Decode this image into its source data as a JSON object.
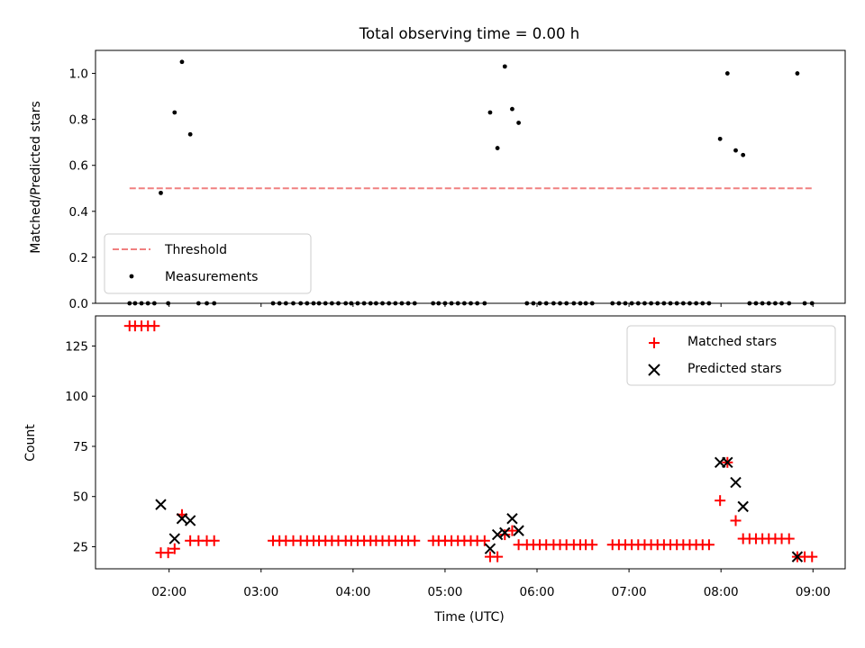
{
  "chart_data": [
    {
      "type": "scatter",
      "title": "Total observing time = 0.00 h",
      "xlabel": "",
      "ylabel": "Matched/Predicted stars",
      "ylim": [
        0,
        1.1
      ],
      "xlim_hours": [
        1.2,
        9.35
      ],
      "yticks": [
        0.0,
        0.2,
        0.4,
        0.6,
        0.8,
        1.0
      ],
      "ytick_labels": [
        "0.0",
        "0.2",
        "0.4",
        "0.6",
        "0.8",
        "1.0"
      ],
      "legend_position": "lower-left",
      "legend": [
        {
          "label": "Threshold",
          "style": "dashed-line",
          "color": "#f08080"
        },
        {
          "label": "Measurements",
          "style": "dot",
          "color": "#000000"
        }
      ],
      "threshold": {
        "name": "Threshold",
        "y": 0.5,
        "x_start_hours": 1.57,
        "x_end_hours": 9.0,
        "color": "#f08080"
      },
      "series": [
        {
          "name": "Measurements",
          "color": "#000000",
          "x_hours": [
            1.57,
            1.63,
            1.7,
            1.77,
            1.84,
            1.91,
            1.99,
            2.06,
            2.14,
            2.23,
            2.32,
            2.41,
            2.49,
            3.13,
            3.2,
            3.27,
            3.35,
            3.43,
            3.5,
            3.57,
            3.63,
            3.7,
            3.77,
            3.84,
            3.92,
            3.98,
            4.05,
            4.12,
            4.19,
            4.25,
            4.32,
            4.39,
            4.46,
            4.53,
            4.6,
            4.67,
            4.87,
            4.93,
            5.0,
            5.07,
            5.14,
            5.21,
            5.28,
            5.35,
            5.43,
            5.49,
            5.57,
            5.65,
            5.73,
            5.8,
            5.89,
            5.96,
            6.03,
            6.1,
            6.18,
            6.25,
            6.32,
            6.4,
            6.47,
            6.53,
            6.6,
            6.82,
            6.89,
            6.96,
            7.03,
            7.1,
            7.17,
            7.24,
            7.31,
            7.38,
            7.45,
            7.52,
            7.59,
            7.66,
            7.73,
            7.8,
            7.87,
            7.99,
            8.07,
            8.16,
            8.24,
            8.31,
            8.38,
            8.45,
            8.52,
            8.59,
            8.66,
            8.74,
            8.83,
            8.91,
            8.99
          ],
          "y": [
            0,
            0,
            0,
            0,
            0,
            0.48,
            0,
            0.83,
            1.05,
            0.735,
            0,
            0,
            0,
            0,
            0,
            0,
            0,
            0,
            0,
            0,
            0,
            0,
            0,
            0,
            0,
            0,
            0,
            0,
            0,
            0,
            0,
            0,
            0,
            0,
            0,
            0,
            0,
            0,
            0,
            0,
            0,
            0,
            0,
            0,
            0,
            0.83,
            0.675,
            1.03,
            0.845,
            0.785,
            0,
            0,
            0,
            0,
            0,
            0,
            0,
            0,
            0,
            0,
            0,
            0,
            0,
            0,
            0,
            0,
            0,
            0,
            0,
            0,
            0,
            0,
            0,
            0,
            0,
            0,
            0,
            0.715,
            1.0,
            0.665,
            0.645,
            0,
            0,
            0,
            0,
            0,
            0,
            0,
            1.0,
            0,
            0
          ]
        }
      ]
    },
    {
      "type": "scatter",
      "title": "",
      "xlabel": "Time (UTC)",
      "ylabel": "Count",
      "ylim": [
        14,
        140
      ],
      "xlim_hours": [
        1.2,
        9.35
      ],
      "yticks": [
        25,
        50,
        75,
        100,
        125
      ],
      "ytick_labels": [
        "25",
        "50",
        "75",
        "100",
        "125"
      ],
      "xticks_hours": [
        2,
        3,
        4,
        5,
        6,
        7,
        8,
        9
      ],
      "xtick_labels": [
        "02:00",
        "03:00",
        "04:00",
        "05:00",
        "06:00",
        "07:00",
        "08:00",
        "09:00"
      ],
      "legend_position": "upper-right",
      "legend": [
        {
          "label": "Matched stars",
          "marker": "+",
          "color": "#ff0000"
        },
        {
          "label": "Predicted stars",
          "marker": "x",
          "color": "#000000"
        }
      ],
      "series": [
        {
          "name": "Matched stars",
          "marker": "+",
          "color": "#ff0000",
          "x_hours": [
            1.57,
            1.63,
            1.7,
            1.77,
            1.84,
            1.91,
            1.99,
            2.06,
            2.14,
            2.23,
            2.32,
            2.41,
            2.49,
            3.13,
            3.2,
            3.27,
            3.35,
            3.43,
            3.5,
            3.57,
            3.63,
            3.7,
            3.77,
            3.84,
            3.92,
            3.98,
            4.05,
            4.12,
            4.19,
            4.25,
            4.32,
            4.39,
            4.46,
            4.53,
            4.6,
            4.67,
            4.87,
            4.93,
            5.0,
            5.07,
            5.14,
            5.21,
            5.28,
            5.35,
            5.43,
            5.49,
            5.57,
            5.65,
            5.73,
            5.8,
            5.89,
            5.96,
            6.03,
            6.1,
            6.18,
            6.25,
            6.32,
            6.4,
            6.47,
            6.53,
            6.6,
            6.82,
            6.89,
            6.96,
            7.03,
            7.1,
            7.17,
            7.24,
            7.31,
            7.38,
            7.45,
            7.52,
            7.59,
            7.66,
            7.73,
            7.8,
            7.87,
            7.99,
            8.07,
            8.16,
            8.24,
            8.31,
            8.38,
            8.45,
            8.52,
            8.59,
            8.66,
            8.74,
            8.83,
            8.91,
            8.99
          ],
          "y": [
            135,
            135,
            135,
            135,
            135,
            22,
            22,
            24,
            41,
            28,
            28,
            28,
            28,
            28,
            28,
            28,
            28,
            28,
            28,
            28,
            28,
            28,
            28,
            28,
            28,
            28,
            28,
            28,
            28,
            28,
            28,
            28,
            28,
            28,
            28,
            28,
            28,
            28,
            28,
            28,
            28,
            28,
            28,
            28,
            28,
            20,
            20,
            31,
            33,
            26,
            26,
            26,
            26,
            26,
            26,
            26,
            26,
            26,
            26,
            26,
            26,
            26,
            26,
            26,
            26,
            26,
            26,
            26,
            26,
            26,
            26,
            26,
            26,
            26,
            26,
            26,
            26,
            48,
            67,
            38,
            29,
            29,
            29,
            29,
            29,
            29,
            29,
            29,
            20,
            20,
            20
          ]
        },
        {
          "name": "Predicted stars",
          "marker": "x",
          "color": "#000000",
          "x_hours": [
            1.91,
            2.06,
            2.14,
            2.23,
            5.49,
            5.57,
            5.65,
            5.73,
            5.8,
            7.99,
            8.07,
            8.16,
            8.24,
            8.83
          ],
          "y": [
            46,
            29,
            39,
            38,
            24,
            31,
            32,
            39,
            33,
            67,
            67,
            57,
            45,
            20
          ]
        }
      ]
    }
  ]
}
